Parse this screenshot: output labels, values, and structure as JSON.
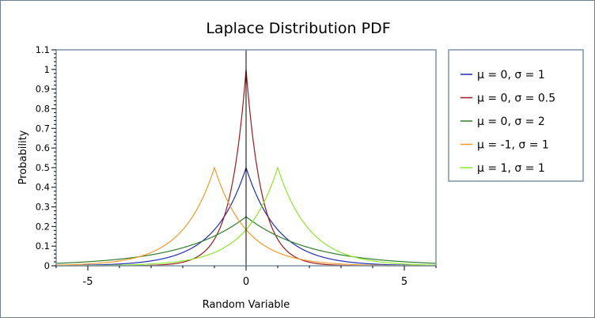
{
  "chart_data": {
    "type": "line",
    "title": "Laplace Distribution PDF",
    "xlabel": "Random Variable",
    "ylabel": "Probability",
    "xlim": [
      -6,
      6
    ],
    "ylim": [
      0,
      1.1
    ],
    "xticks": [
      -5,
      0,
      5
    ],
    "xtick_labels": [
      "-5",
      "0",
      "5"
    ],
    "yticks": [
      0,
      0.1,
      0.2,
      0.3,
      0.4,
      0.5,
      0.6,
      0.7,
      0.8,
      0.9,
      1,
      1.1
    ],
    "ytick_labels": [
      "0",
      "0.1",
      "0.2",
      "0.3",
      "0.4",
      "0.5",
      "0.6",
      "0.7",
      "0.8",
      "0.9",
      "1",
      "1.1"
    ],
    "grid": false,
    "legend_position": "right",
    "zero_line": true,
    "series": [
      {
        "name": "μ = 0, σ = 1",
        "color": "#1f2db5",
        "location": 0,
        "scale": 1
      },
      {
        "name": "μ = 0, σ = 0.5",
        "color": "#9b1a1a",
        "location": 0,
        "scale": 0.5
      },
      {
        "name": "μ = 0, σ = 2",
        "color": "#2e7d2e",
        "location": 0,
        "scale": 2
      },
      {
        "name": "μ = -1, σ = 1",
        "color": "#f29a2e",
        "location": -1,
        "scale": 1
      },
      {
        "name": "μ = 1, σ = 1",
        "color": "#8ee62e",
        "location": 1,
        "scale": 1
      }
    ]
  }
}
